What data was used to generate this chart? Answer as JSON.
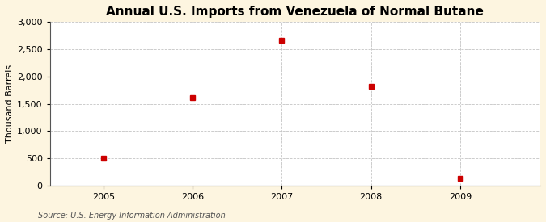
{
  "title": "Annual U.S. Imports from Venezuela of Normal Butane",
  "ylabel": "Thousand Barrels",
  "source": "Source: U.S. Energy Information Administration",
  "figure_bg_color": "#fdf5e0",
  "plot_bg_color": "#ffffff",
  "years": [
    2005,
    2006,
    2007,
    2008,
    2009
  ],
  "values": [
    500,
    1610,
    2660,
    1820,
    130
  ],
  "marker_color": "#cc0000",
  "marker_size": 4,
  "xlim": [
    2004.4,
    2009.9
  ],
  "ylim": [
    0,
    3000
  ],
  "yticks": [
    0,
    500,
    1000,
    1500,
    2000,
    2500,
    3000
  ],
  "xticks": [
    2005,
    2006,
    2007,
    2008,
    2009
  ],
  "grid_color": "#aaaaaa",
  "grid_style": "--",
  "title_fontsize": 11,
  "label_fontsize": 8,
  "tick_fontsize": 8,
  "source_fontsize": 7
}
